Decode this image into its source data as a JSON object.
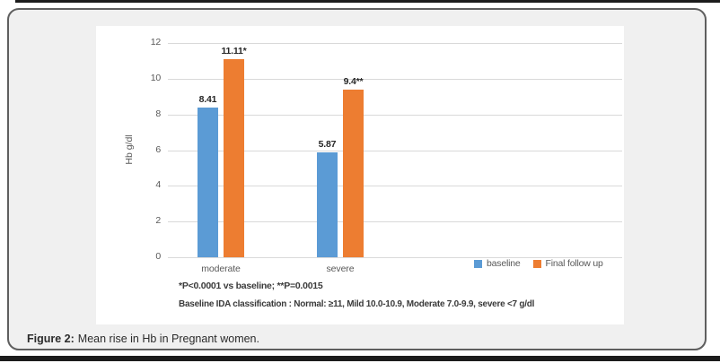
{
  "figure": {
    "caption_label": "Figure 2:",
    "caption_text": "Mean rise in Hb in Pregnant women."
  },
  "chart_data": {
    "type": "bar",
    "title": "",
    "categories": [
      "moderate",
      "severe"
    ],
    "series": [
      {
        "name": "baseline",
        "color": "#5B9BD5",
        "values": [
          8.41,
          5.87
        ],
        "labels": [
          "8.41",
          "5.87"
        ]
      },
      {
        "name": "Final follow up",
        "color": "#ED7D31",
        "values": [
          11.11,
          9.4
        ],
        "labels": [
          "11.11*",
          "9.4**"
        ]
      }
    ],
    "xlabel": "",
    "ylabel": "Hb g/dl",
    "ylim": [
      0,
      12
    ],
    "ytick_step": 2,
    "grid": true,
    "legend_position": "bottom-right",
    "annotations": [
      "*P<0.0001 vs baseline; **P=0.0015",
      "Baseline IDA classification :  Normal: ≥11, Mild 10.0-10.9, Moderate 7.0-9.9, severe <7 g/dl"
    ]
  },
  "colors": {
    "baseline_series": "#5B9BD5",
    "final_follow_up_series": "#ED7D31",
    "gridline": "#D9D9D9",
    "axis_text": "#595959",
    "card_background": "#F0F0F0",
    "card_border": "#5F5F5F",
    "page_rule": "#1C1C1C"
  }
}
